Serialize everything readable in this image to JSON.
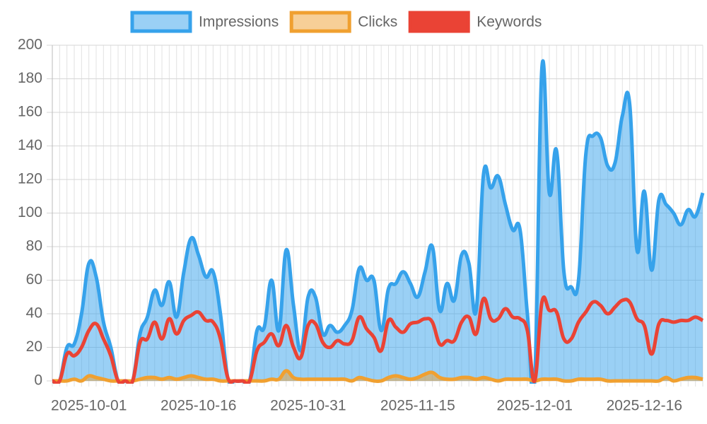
{
  "chart_data": {
    "type": "line",
    "x": [
      "2025-09-26",
      "2025-09-27",
      "2025-09-28",
      "2025-09-29",
      "2025-09-30",
      "2025-10-01",
      "2025-10-02",
      "2025-10-03",
      "2025-10-04",
      "2025-10-05",
      "2025-10-06",
      "2025-10-07",
      "2025-10-08",
      "2025-10-09",
      "2025-10-10",
      "2025-10-11",
      "2025-10-12",
      "2025-10-13",
      "2025-10-14",
      "2025-10-15",
      "2025-10-16",
      "2025-10-17",
      "2025-10-18",
      "2025-10-19",
      "2025-10-20",
      "2025-10-21",
      "2025-10-22",
      "2025-10-23",
      "2025-10-24",
      "2025-10-25",
      "2025-10-26",
      "2025-10-27",
      "2025-10-28",
      "2025-10-29",
      "2025-10-30",
      "2025-10-31",
      "2025-11-01",
      "2025-11-02",
      "2025-11-03",
      "2025-11-04",
      "2025-11-05",
      "2025-11-06",
      "2025-11-07",
      "2025-11-08",
      "2025-11-09",
      "2025-11-10",
      "2025-11-11",
      "2025-11-12",
      "2025-11-13",
      "2025-11-14",
      "2025-11-15",
      "2025-11-16",
      "2025-11-17",
      "2025-11-18",
      "2025-11-19",
      "2025-11-20",
      "2025-11-21",
      "2025-11-22",
      "2025-11-23",
      "2025-11-24",
      "2025-11-25",
      "2025-11-26",
      "2025-11-27",
      "2025-11-28",
      "2025-11-29",
      "2025-11-30",
      "2025-12-01",
      "2025-12-02",
      "2025-12-03",
      "2025-12-04",
      "2025-12-05",
      "2025-12-06",
      "2025-12-07",
      "2025-12-08",
      "2025-12-09",
      "2025-12-10",
      "2025-12-11",
      "2025-12-12",
      "2025-12-13",
      "2025-12-14",
      "2025-12-15",
      "2025-12-16",
      "2025-12-17",
      "2025-12-18",
      "2025-12-19",
      "2025-12-20",
      "2025-12-21",
      "2025-12-22",
      "2025-12-23",
      "2025-12-24"
    ],
    "series": [
      {
        "name": "Impressions",
        "color": "#36a2eb",
        "fill": true,
        "values": [
          0,
          0,
          20,
          22,
          40,
          70,
          62,
          35,
          20,
          0,
          0,
          0,
          28,
          38,
          54,
          45,
          59,
          38,
          65,
          85,
          75,
          62,
          65,
          40,
          2,
          0,
          0,
          0,
          30,
          32,
          60,
          30,
          78,
          45,
          18,
          50,
          50,
          28,
          33,
          29,
          33,
          42,
          67,
          60,
          60,
          30,
          55,
          58,
          65,
          58,
          50,
          65,
          80,
          42,
          58,
          48,
          75,
          70,
          42,
          123,
          115,
          122,
          105,
          90,
          90,
          40,
          0,
          187,
          112,
          137,
          65,
          56,
          60,
          135,
          146,
          145,
          128,
          130,
          158,
          165,
          78,
          113,
          66,
          108,
          105,
          100,
          93,
          102,
          98,
          112
        ]
      },
      {
        "name": "Clicks",
        "color": "#f0a030",
        "fill": true,
        "values": [
          0,
          0,
          0,
          1,
          0,
          3,
          2,
          1,
          0,
          0,
          0,
          0,
          1,
          2,
          2,
          1,
          2,
          1,
          2,
          3,
          2,
          1,
          1,
          0,
          0,
          0,
          0,
          0,
          0,
          0,
          1,
          1,
          6,
          2,
          1,
          1,
          1,
          1,
          1,
          1,
          1,
          0,
          2,
          1,
          0,
          0,
          2,
          3,
          2,
          1,
          2,
          4,
          5,
          2,
          1,
          1,
          2,
          2,
          1,
          2,
          1,
          0,
          1,
          1,
          1,
          1,
          0,
          1,
          1,
          1,
          0,
          0,
          1,
          1,
          1,
          1,
          0,
          0,
          0,
          0,
          0,
          0,
          0,
          0,
          2,
          0,
          1,
          2,
          2,
          1
        ]
      },
      {
        "name": "Keywords",
        "color": "#ea4335",
        "fill": false,
        "values": [
          0,
          0,
          16,
          15,
          20,
          30,
          34,
          25,
          15,
          0,
          0,
          0,
          23,
          25,
          35,
          25,
          37,
          28,
          36,
          39,
          41,
          36,
          35,
          25,
          2,
          0,
          0,
          0,
          18,
          23,
          28,
          21,
          33,
          20,
          14,
          33,
          34,
          23,
          20,
          24,
          22,
          24,
          38,
          31,
          26,
          18,
          36,
          32,
          29,
          34,
          35,
          37,
          35,
          22,
          24,
          24,
          35,
          38,
          28,
          49,
          37,
          37,
          43,
          38,
          37,
          30,
          0,
          47,
          42,
          41,
          25,
          25,
          35,
          41,
          47,
          45,
          40,
          44,
          48,
          47,
          37,
          33,
          16,
          34,
          36,
          35,
          36,
          36,
          38,
          36
        ]
      }
    ],
    "xticks": [
      "2025-10-01",
      "2025-10-16",
      "2025-10-31",
      "2025-11-15",
      "2025-12-01",
      "2025-12-16"
    ],
    "ylim": [
      0,
      200
    ],
    "yticks": [
      0,
      20,
      40,
      60,
      80,
      100,
      120,
      140,
      160,
      180,
      200
    ],
    "grid": true,
    "legend": "top"
  }
}
